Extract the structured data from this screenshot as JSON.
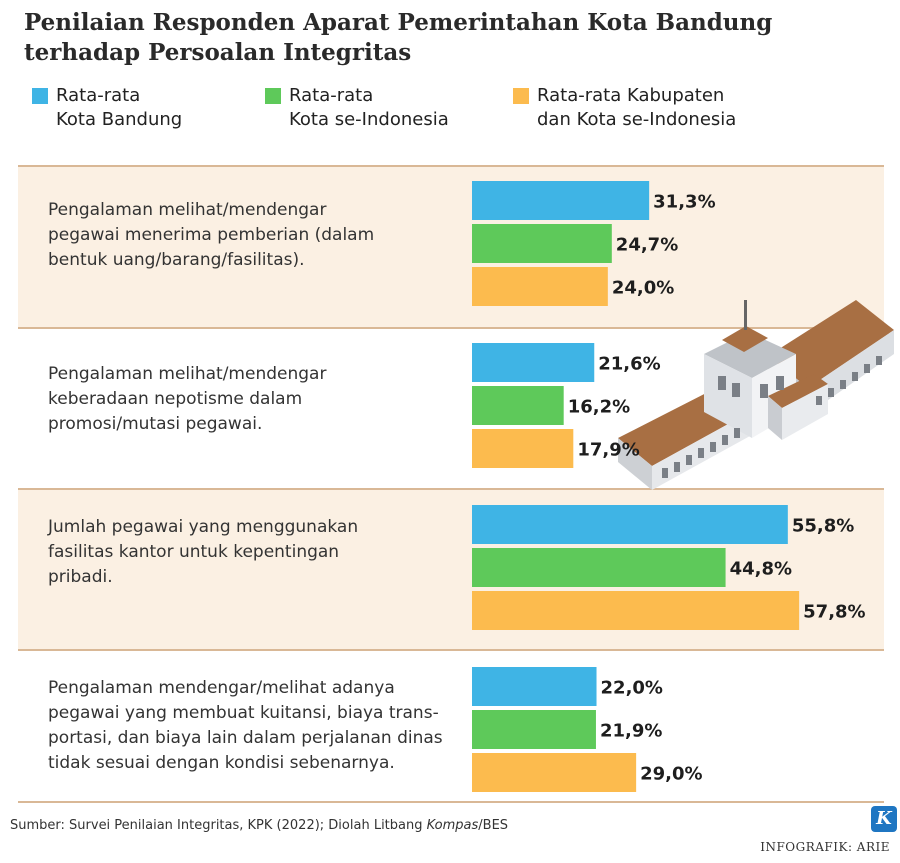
{
  "title": "Penilaian Responden Aparat Pemerintahan Kota Bandung\nterhadap Persoalan Integritas",
  "legend": [
    {
      "label": "Rata-rata\nKota Bandung",
      "color": "#3fb4e5"
    },
    {
      "label": "Rata-rata\nKota se-Indonesia",
      "color": "#5ec95a"
    },
    {
      "label": "Rata-rata Kabupaten\ndan Kota se-Indonesia",
      "color": "#fcbb4e"
    }
  ],
  "chart_data": {
    "type": "bar",
    "orientation": "horizontal",
    "categories": [
      "Pengalaman melihat/mendengar\npegawai menerima pemberian (dalam\nbentuk uang/barang/fasilitas).",
      "Pengalaman melihat/mendengar\nkeberadaan nepotisme dalam\npromosi/mutasi pegawai.",
      "Jumlah pegawai yang menggunakan\nfasilitas kantor untuk kepentingan\npribadi.",
      "Pengalaman mendengar/melihat adanya\npegawai yang membuat kuitansi, biaya trans-\nportasi, dan biaya lain dalam perjalanan dinas\ntidak sesuai dengan kondisi sebenarnya."
    ],
    "series": [
      {
        "name": "Rata-rata Kota Bandung",
        "values": [
          31.3,
          21.6,
          55.8,
          22.0
        ],
        "labels": [
          "31,3%",
          "21,6%",
          "55,8%",
          "22,0%"
        ]
      },
      {
        "name": "Rata-rata Kota se-Indonesia",
        "values": [
          24.7,
          16.2,
          44.8,
          21.9
        ],
        "labels": [
          "24,7%",
          "16,2%",
          "44,8%",
          "21,9%"
        ]
      },
      {
        "name": "Rata-rata Kabupaten dan Kota se-Indonesia",
        "values": [
          24.0,
          17.9,
          57.8,
          29.0
        ],
        "labels": [
          "24,0%",
          "17,9%",
          "57,8%",
          "29,0%"
        ]
      }
    ],
    "unit": "%",
    "grid": false
  },
  "source": {
    "prefix": "Sumber: Survei Penilaian Integritas, KPK (2022); Diolah Litbang ",
    "italic": "Kompas",
    "suffix": "/BES"
  },
  "credit": "INFOGRAFIK: ARIE",
  "logo_letter": "K"
}
